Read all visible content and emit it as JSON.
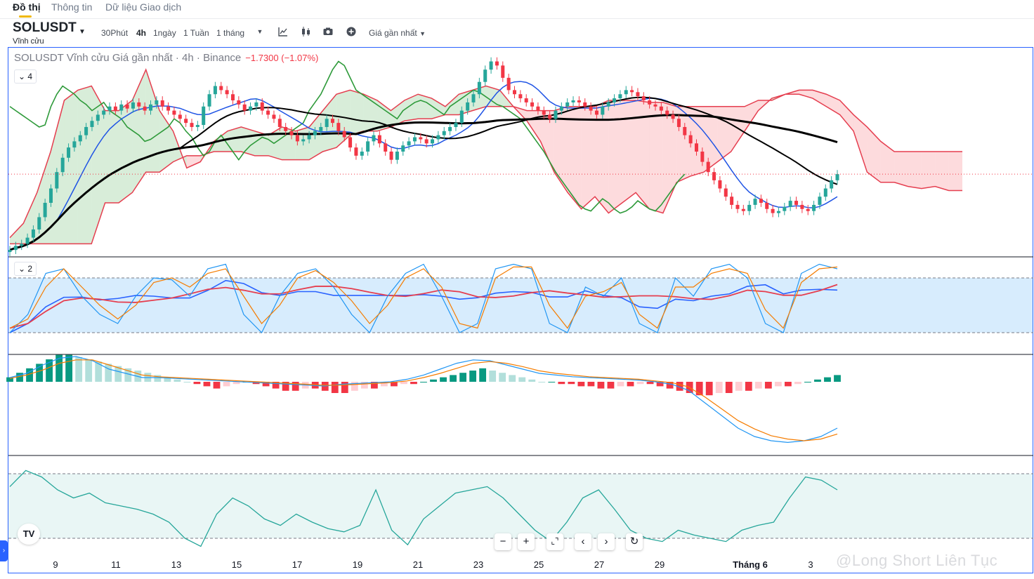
{
  "tabs": [
    {
      "label": "Đồ thị",
      "active": true
    },
    {
      "label": "Thông tin",
      "active": false
    },
    {
      "label": "Dữ liệu Giao dịch",
      "active": false
    }
  ],
  "toolbar": {
    "symbol": "SOLUSDT",
    "contract_type": "Vĩnh cửu",
    "intervals": [
      {
        "label": "30Phút",
        "active": false
      },
      {
        "label": "4h",
        "active": true
      },
      {
        "label": "1ngày",
        "active": false
      },
      {
        "label": "1 Tuần",
        "active": false
      },
      {
        "label": "1 tháng",
        "active": false
      }
    ],
    "price_type": "Giá gần nhất",
    "icons": [
      "more-intervals-icon",
      "indicators-icon",
      "candle-style-icon",
      "screenshot-icon",
      "add-icon"
    ]
  },
  "legend": {
    "title": "SOLUSDT Vĩnh cửu Giá gần nhất · 4h · Binance",
    "change": "−1.7300 (−1.07%)"
  },
  "pane_toggles": [
    "4",
    "2"
  ],
  "controls": [
    "zoom-out-icon",
    "zoom-in-icon",
    "reset-zoom-icon",
    "scroll-left-icon",
    "scroll-right-icon",
    "reset-chart-icon"
  ],
  "watermark": "@Long Short Liên Tục",
  "colors": {
    "up": "#26a69a",
    "down": "#f23645",
    "kijun": "#1e53e5",
    "tenkan_red": "#e53e4f",
    "cloud_green": "#2e9a3a",
    "ma": "#000000"
  },
  "chart_data": [
    {
      "type": "candlestick",
      "title": "SOLUSDT Vĩnh cửu Giá gần nhất · 4h · Binance",
      "x_ticks": [
        "9",
        "11",
        "13",
        "15",
        "17",
        "19",
        "21",
        "23",
        "25",
        "27",
        "29",
        "Tháng 6",
        "3"
      ],
      "y_range_relative": [
        0,
        1
      ],
      "close": [
        0.02,
        0.04,
        0.05,
        0.08,
        0.12,
        0.18,
        0.25,
        0.32,
        0.4,
        0.47,
        0.52,
        0.55,
        0.58,
        0.62,
        0.65,
        0.68,
        0.7,
        0.72,
        0.7,
        0.73,
        0.71,
        0.74,
        0.72,
        0.7,
        0.73,
        0.75,
        0.72,
        0.7,
        0.68,
        0.66,
        0.64,
        0.62,
        0.63,
        0.72,
        0.78,
        0.82,
        0.8,
        0.78,
        0.75,
        0.73,
        0.7,
        0.72,
        0.74,
        0.7,
        0.68,
        0.66,
        0.62,
        0.6,
        0.58,
        0.55,
        0.56,
        0.58,
        0.6,
        0.62,
        0.66,
        0.64,
        0.6,
        0.57,
        0.52,
        0.48,
        0.5,
        0.55,
        0.58,
        0.54,
        0.5,
        0.46,
        0.5,
        0.53,
        0.55,
        0.57,
        0.56,
        0.54,
        0.56,
        0.58,
        0.6,
        0.62,
        0.64,
        0.7,
        0.74,
        0.78,
        0.84,
        0.9,
        0.94,
        0.92,
        0.86,
        0.8,
        0.78,
        0.76,
        0.74,
        0.72,
        0.7,
        0.68,
        0.66,
        0.7,
        0.72,
        0.74,
        0.75,
        0.74,
        0.72,
        0.7,
        0.68,
        0.72,
        0.74,
        0.76,
        0.78,
        0.8,
        0.79,
        0.77,
        0.75,
        0.73,
        0.72,
        0.7,
        0.68,
        0.66,
        0.62,
        0.58,
        0.54,
        0.5,
        0.45,
        0.4,
        0.36,
        0.32,
        0.28,
        0.24,
        0.22,
        0.21,
        0.24,
        0.27,
        0.25,
        0.22,
        0.2,
        0.21,
        0.23,
        0.26,
        0.24,
        0.22,
        0.21,
        0.24,
        0.28,
        0.32,
        0.36,
        0.39
      ],
      "cloud_a": [
        0.08,
        0.15,
        0.3,
        0.5,
        0.75,
        0.8,
        0.82,
        0.7,
        0.7,
        0.75,
        0.9,
        0.7,
        0.6,
        0.42,
        0.45,
        0.55,
        0.6,
        0.62,
        0.6,
        0.58,
        0.62,
        0.6,
        0.62,
        0.7,
        0.78,
        0.8,
        0.78,
        0.75,
        0.7,
        0.75,
        0.78,
        0.76,
        0.72,
        0.78,
        0.8,
        0.82,
        0.8,
        0.72,
        0.65,
        0.55,
        0.4,
        0.3,
        0.22,
        0.28,
        0.2,
        0.25,
        0.3,
        0.22,
        0.2,
        0.35,
        0.38,
        0.4,
        0.45,
        0.5,
        0.6,
        0.7,
        0.76,
        0.78,
        0.78,
        0.76,
        0.72,
        0.68,
        0.6,
        0.4,
        0.35,
        0.35,
        0.33,
        0.32,
        0.33,
        0.31,
        0.31
      ],
      "cloud_b": [
        0.05,
        0.05,
        0.05,
        0.05,
        0.05,
        0.05,
        0.05,
        0.25,
        0.25,
        0.3,
        0.4,
        0.4,
        0.45,
        0.48,
        0.48,
        0.5,
        0.5,
        0.5,
        0.48,
        0.48,
        0.46,
        0.46,
        0.46,
        0.5,
        0.52,
        0.58,
        0.6,
        0.6,
        0.62,
        0.65,
        0.66,
        0.66,
        0.68,
        0.68,
        0.7,
        0.72,
        0.72,
        0.72,
        0.7,
        0.7,
        0.7,
        0.72,
        0.72,
        0.72,
        0.75,
        0.75,
        0.75,
        0.74,
        0.74,
        0.72,
        0.72,
        0.72,
        0.72,
        0.72,
        0.72,
        0.75,
        0.75,
        0.78,
        0.8,
        0.8,
        0.78,
        0.75,
        0.68,
        0.62,
        0.55,
        0.5,
        0.5,
        0.5,
        0.5,
        0.5,
        0.5
      ]
    },
    {
      "type": "line",
      "name": "stoch-rsi",
      "x": "shared",
      "upper_band": 80,
      "lower_band": 20,
      "k": [
        20,
        40,
        85,
        90,
        60,
        40,
        30,
        60,
        80,
        78,
        60,
        90,
        95,
        40,
        20,
        60,
        85,
        90,
        70,
        40,
        20,
        60,
        85,
        95,
        60,
        20,
        30,
        90,
        95,
        90,
        30,
        20,
        70,
        60,
        80,
        30,
        20,
        80,
        60,
        90,
        95,
        80,
        30,
        20,
        85,
        95,
        90
      ],
      "d": [
        25,
        35,
        70,
        90,
        70,
        50,
        35,
        50,
        75,
        80,
        70,
        85,
        90,
        60,
        30,
        50,
        80,
        88,
        75,
        55,
        30,
        50,
        80,
        90,
        70,
        30,
        25,
        80,
        92,
        92,
        50,
        25,
        60,
        65,
        75,
        40,
        25,
        70,
        70,
        85,
        90,
        85,
        45,
        25,
        75,
        90,
        92
      ]
    },
    {
      "type": "bar",
      "name": "macd",
      "histogram": [
        2,
        4,
        6,
        8,
        10,
        12,
        12,
        11,
        10,
        9,
        8,
        7,
        6,
        5,
        4,
        3,
        2,
        1,
        0,
        -1,
        -2,
        -3,
        -2,
        -1,
        0,
        -1,
        -2,
        -3,
        -4,
        -4,
        -3,
        -3,
        -4,
        -5,
        -5,
        -4,
        -3,
        -3,
        -2,
        -2,
        -1,
        -1,
        0,
        1,
        2,
        3,
        4,
        5,
        6,
        5,
        4,
        3,
        2,
        1,
        0,
        0,
        -1,
        -1,
        -2,
        -2,
        -3,
        -3,
        -2,
        -2,
        -1,
        -1,
        -2,
        -3,
        -4,
        -5,
        -6,
        -6,
        -5,
        -5,
        -4,
        -4,
        -3,
        -3,
        -2,
        -2,
        -1,
        0,
        1,
        2,
        3
      ],
      "macd": [
        5,
        10,
        20,
        28,
        30,
        25,
        15,
        10,
        5,
        5,
        4,
        3,
        2,
        1,
        0,
        -1,
        -2,
        -3,
        -4,
        -5,
        -3,
        -2,
        -1,
        0,
        3,
        8,
        15,
        22,
        26,
        25,
        20,
        15,
        10,
        8,
        6,
        5,
        4,
        3,
        2,
        0,
        -3,
        -10,
        -25,
        -40,
        -55,
        -65,
        -70,
        -72,
        -70,
        -65,
        -55
      ],
      "signal": [
        4,
        8,
        14,
        22,
        26,
        26,
        20,
        14,
        8,
        6,
        5,
        4,
        3,
        2,
        1,
        0,
        -1,
        -2,
        -3,
        -4,
        -4,
        -3,
        -2,
        -1,
        1,
        5,
        10,
        16,
        22,
        24,
        22,
        18,
        13,
        10,
        8,
        6,
        5,
        4,
        3,
        1,
        -1,
        -6,
        -18,
        -32,
        -46,
        -56,
        -64,
        -68,
        -70,
        -68,
        -62
      ]
    },
    {
      "type": "line",
      "name": "rsi",
      "upper_band": 70,
      "lower_band": 30,
      "values": [
        62,
        72,
        68,
        60,
        55,
        58,
        52,
        50,
        48,
        45,
        40,
        30,
        25,
        45,
        55,
        50,
        42,
        38,
        45,
        40,
        36,
        34,
        38,
        60,
        35,
        26,
        42,
        50,
        58,
        60,
        62,
        55,
        45,
        35,
        28,
        40,
        55,
        60,
        48,
        35,
        30,
        28,
        35,
        32,
        30,
        28,
        35,
        38,
        40,
        55,
        68,
        66,
        60
      ]
    }
  ]
}
